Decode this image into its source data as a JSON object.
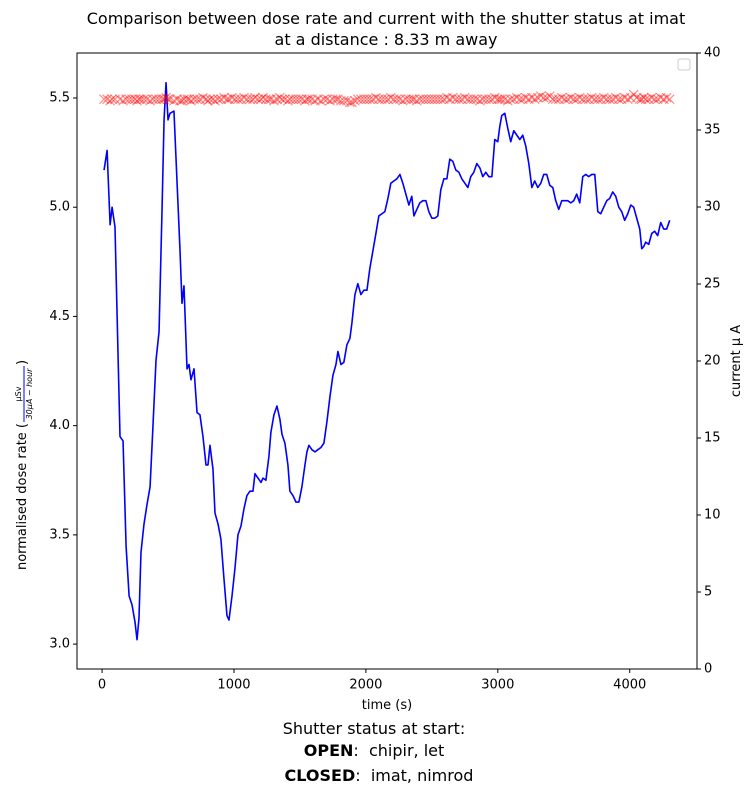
{
  "chart_data": {
    "type": "line",
    "title": "Comparison between dose rate and current with the shutter status at imat",
    "subtitle": "at a distance : 8.33 m away",
    "x_label": "time (s)",
    "y_label": {
      "text": "normalised dose rate (",
      "numerator": "μSv",
      "denominator": "30μA − hour",
      "close": ")"
    },
    "y2_label": "current μ A",
    "annotations": {
      "heading": "Shutter status at start:",
      "open_key": "OPEN",
      "open_text": ":  chipir, let",
      "closed_key": "CLOSED",
      "closed_text": ":  imat, nimrod"
    },
    "x": [
      15,
      38,
      61,
      76,
      98,
      136,
      159,
      182,
      205,
      227,
      250,
      265,
      280,
      295,
      318,
      341,
      364,
      386,
      409,
      432,
      455,
      470,
      485,
      500,
      515,
      545,
      568,
      591,
      606,
      621,
      644,
      659,
      674,
      697,
      720,
      742,
      765,
      788,
      803,
      818,
      841,
      856,
      879,
      901,
      924,
      947,
      962,
      985,
      1008,
      1030,
      1053,
      1076,
      1098,
      1121,
      1144,
      1159,
      1182,
      1205,
      1220,
      1242,
      1265,
      1280,
      1303,
      1326,
      1348,
      1364,
      1386,
      1409,
      1424,
      1447,
      1470,
      1492,
      1515,
      1538,
      1553,
      1568,
      1591,
      1614,
      1636,
      1659,
      1682,
      1705,
      1727,
      1750,
      1773,
      1788,
      1811,
      1833,
      1856,
      1879,
      1894,
      1917,
      1939,
      1962,
      1985,
      2008,
      2030,
      2053,
      2076,
      2098,
      2121,
      2144,
      2167,
      2189,
      2212,
      2235,
      2258,
      2280,
      2303,
      2326,
      2348,
      2364,
      2386,
      2409,
      2432,
      2455,
      2477,
      2500,
      2523,
      2545,
      2568,
      2591,
      2614,
      2636,
      2659,
      2682,
      2705,
      2727,
      2750,
      2773,
      2795,
      2818,
      2841,
      2864,
      2886,
      2909,
      2932,
      2955,
      2977,
      3000,
      3015,
      3030,
      3053,
      3076,
      3098,
      3121,
      3144,
      3167,
      3189,
      3212,
      3235,
      3258,
      3280,
      3303,
      3326,
      3348,
      3371,
      3394,
      3417,
      3439,
      3462,
      3485,
      3508,
      3530,
      3553,
      3576,
      3598,
      3621,
      3644,
      3667,
      3689,
      3712,
      3735,
      3758,
      3780,
      3803,
      3826,
      3848,
      3871,
      3894,
      3917,
      3939,
      3962,
      3985,
      4008,
      4030,
      4053,
      4076,
      4091,
      4106,
      4121,
      4144,
      4167,
      4189,
      4212,
      4235,
      4258,
      4280,
      4303
    ],
    "series": [
      {
        "color": "#0000ff",
        "marker": "none",
        "axis": "y",
        "values": [
          5.17,
          5.26,
          4.92,
          5.0,
          4.91,
          3.95,
          3.93,
          3.45,
          3.22,
          3.18,
          3.1,
          3.02,
          3.12,
          3.42,
          3.55,
          3.64,
          3.72,
          4.0,
          4.3,
          4.43,
          5.0,
          5.4,
          5.57,
          5.4,
          5.43,
          5.44,
          5.12,
          4.8,
          4.56,
          4.64,
          4.26,
          4.28,
          4.21,
          4.26,
          4.06,
          4.05,
          3.95,
          3.82,
          3.82,
          3.91,
          3.8,
          3.6,
          3.55,
          3.48,
          3.3,
          3.13,
          3.11,
          3.22,
          3.35,
          3.5,
          3.54,
          3.62,
          3.68,
          3.7,
          3.7,
          3.78,
          3.76,
          3.74,
          3.76,
          3.75,
          3.86,
          3.97,
          4.05,
          4.09,
          4.03,
          3.96,
          3.92,
          3.82,
          3.7,
          3.68,
          3.65,
          3.65,
          3.72,
          3.82,
          3.88,
          3.91,
          3.89,
          3.88,
          3.89,
          3.9,
          3.92,
          4.02,
          4.13,
          4.23,
          4.28,
          4.34,
          4.28,
          4.29,
          4.37,
          4.4,
          4.47,
          4.6,
          4.65,
          4.6,
          4.62,
          4.62,
          4.72,
          4.8,
          4.88,
          4.96,
          4.97,
          4.98,
          5.04,
          5.11,
          5.12,
          5.13,
          5.15,
          5.11,
          5.06,
          5.01,
          5.05,
          4.96,
          4.99,
          5.02,
          5.03,
          5.03,
          4.98,
          4.95,
          4.95,
          4.96,
          5.08,
          5.13,
          5.13,
          5.22,
          5.21,
          5.17,
          5.16,
          5.13,
          5.11,
          5.09,
          5.14,
          5.16,
          5.2,
          5.18,
          5.14,
          5.16,
          5.14,
          5.14,
          5.31,
          5.3,
          5.37,
          5.42,
          5.43,
          5.36,
          5.3,
          5.35,
          5.33,
          5.31,
          5.33,
          5.28,
          5.2,
          5.09,
          5.12,
          5.09,
          5.11,
          5.15,
          5.15,
          5.1,
          5.09,
          5.03,
          4.99,
          5.03,
          5.03,
          5.03,
          5.02,
          5.03,
          5.06,
          5.02,
          5.14,
          5.15,
          5.14,
          5.15,
          5.15,
          4.98,
          4.97,
          5.0,
          5.03,
          5.04,
          5.07,
          5.05,
          5.0,
          4.98,
          4.94,
          4.97,
          5.01,
          5.0,
          4.95,
          4.9,
          4.81,
          4.82,
          4.84,
          4.83,
          4.88,
          4.89,
          4.87,
          4.93,
          4.9,
          4.9,
          4.94
        ]
      },
      {
        "color": "#ff0000",
        "marker": "x",
        "axis": "y2",
        "values": [
          37.0,
          37.0,
          36.9,
          37.0,
          37.0,
          37.0,
          36.9,
          37.0,
          37.0,
          37.0,
          37.0,
          36.9,
          37.0,
          37.0,
          37.0,
          37.0,
          36.9,
          37.0,
          37.0,
          37.0,
          37.0,
          37.0,
          37.1,
          37.0,
          37.0,
          36.9,
          37.0,
          36.9,
          36.9,
          37.0,
          37.0,
          37.0,
          36.9,
          37.0,
          37.0,
          37.0,
          37.1,
          37.0,
          36.9,
          37.0,
          37.0,
          36.9,
          37.0,
          37.0,
          37.1,
          37.0,
          37.0,
          37.1,
          37.0,
          37.0,
          37.0,
          37.1,
          37.0,
          37.0,
          37.0,
          37.1,
          37.0,
          37.0,
          37.1,
          37.0,
          37.0,
          37.0,
          36.9,
          37.0,
          37.1,
          37.0,
          37.0,
          36.9,
          37.0,
          37.0,
          37.0,
          37.0,
          37.0,
          36.9,
          37.0,
          37.0,
          37.0,
          36.9,
          37.0,
          36.9,
          37.0,
          37.0,
          36.9,
          37.0,
          37.0,
          37.0,
          36.9,
          36.9,
          36.9,
          36.8,
          36.8,
          36.9,
          37.0,
          37.0,
          37.0,
          37.0,
          37.0,
          37.0,
          37.1,
          37.0,
          37.0,
          37.0,
          37.0,
          37.1,
          37.0,
          37.0,
          37.0,
          36.9,
          37.0,
          37.0,
          37.0,
          37.0,
          36.9,
          37.0,
          37.0,
          37.0,
          37.0,
          37.0,
          37.0,
          37.0,
          37.0,
          37.0,
          37.1,
          37.0,
          37.1,
          37.0,
          37.0,
          37.0,
          37.1,
          37.0,
          37.0,
          37.0,
          37.0,
          36.9,
          37.0,
          37.0,
          37.0,
          37.0,
          37.1,
          37.0,
          37.0,
          37.0,
          37.0,
          36.9,
          37.0,
          37.0,
          37.1,
          37.0,
          37.0,
          37.1,
          37.0,
          37.1,
          37.0,
          37.1,
          37.2,
          37.1,
          37.1,
          37.2,
          37.0,
          37.0,
          37.0,
          37.1,
          37.0,
          37.0,
          37.1,
          37.0,
          37.0,
          37.1,
          37.0,
          37.0,
          37.0,
          37.1,
          37.0,
          37.0,
          37.0,
          37.1,
          37.0,
          37.0,
          37.0,
          37.1,
          37.0,
          37.0,
          37.1,
          37.0,
          37.1,
          37.3,
          37.1,
          37.0,
          37.0,
          37.1,
          37.0,
          37.0,
          37.1,
          37.0,
          37.0,
          37.1,
          37.0,
          37.1,
          37.0
        ]
      }
    ],
    "xlim": [
      -190,
      4510
    ],
    "ylim": [
      2.886,
      5.706
    ],
    "y2lim": [
      0,
      40
    ],
    "xticks": [
      0,
      1000,
      2000,
      3000,
      4000
    ],
    "yticks": [
      {
        "value": 3,
        "label": "3.0"
      },
      {
        "value": 3.5,
        "label": "3.5"
      },
      {
        "value": 4,
        "label": "4.0"
      },
      {
        "value": 4.5,
        "label": "4.5"
      },
      {
        "value": 5,
        "label": "5.0"
      },
      {
        "value": 5.5,
        "label": "5.5"
      }
    ],
    "y2ticks": [
      0,
      5,
      10,
      15,
      20,
      25,
      30,
      35,
      40
    ],
    "y_label_color": "#0000ff",
    "y2_label_color": "#ff0000",
    "grid": false
  }
}
